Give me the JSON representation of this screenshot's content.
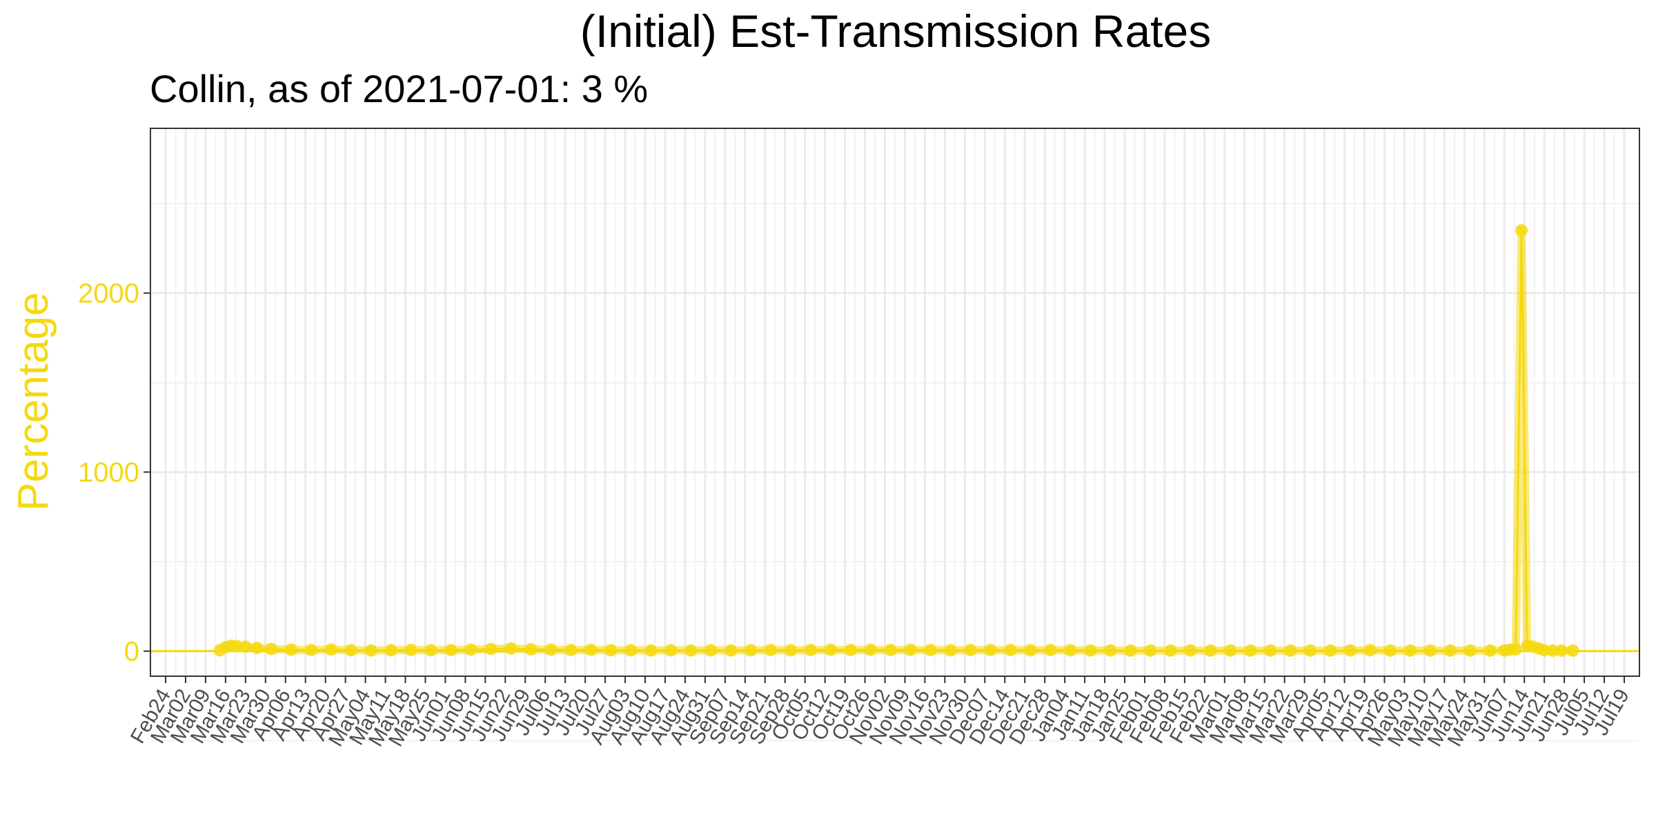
{
  "chart_data": {
    "type": "line",
    "title": "(Initial) Est-Transmission Rates",
    "subtitle": "Collin, as of 2021-07-01:  3 %",
    "xlabel": "",
    "ylabel": "Percentage",
    "ylim": [
      -140,
      2920
    ],
    "y_ticks": [
      0,
      1000,
      2000
    ],
    "y_tick_labels": [
      "0",
      "1000",
      "2000"
    ],
    "x_tick_labels": [
      "Feb24",
      "Mar02",
      "Mar09",
      "Mar16",
      "Mar23",
      "Mar30",
      "Apr06",
      "Apr13",
      "Apr20",
      "Apr27",
      "May04",
      "May11",
      "May18",
      "May25",
      "Jun01",
      "Jun08",
      "Jun15",
      "Jun22",
      "Jun29",
      "Jul06",
      "Jul13",
      "Jul20",
      "Jul27",
      "Aug03",
      "Aug10",
      "Aug17",
      "Aug24",
      "Aug31",
      "Sep07",
      "Sep14",
      "Sep21",
      "Sep28",
      "Oct05",
      "Oct12",
      "Oct19",
      "Oct26",
      "Nov02",
      "Nov09",
      "Nov16",
      "Nov23",
      "Nov30",
      "Dec07",
      "Dec14",
      "Dec21",
      "Dec28",
      "Jan04",
      "Jan11",
      "Jan18",
      "Jan25",
      "Feb01",
      "Feb08",
      "Feb15",
      "Feb22",
      "Mar01",
      "Mar08",
      "Mar15",
      "Mar22",
      "Mar29",
      "Apr05",
      "Apr12",
      "Apr19",
      "Apr26",
      "May03",
      "May10",
      "May17",
      "May24",
      "May31",
      "Jun07",
      "Jun14",
      "Jun21",
      "Jun28",
      "Jul05",
      "Jul12",
      "Jul19"
    ],
    "x_start": "2020-02-24",
    "x_end": "2021-07-19",
    "reference_line": 0,
    "grid": true,
    "series": [
      {
        "color": "#f5d90f",
        "points": [
          [
            "2020-03-14",
            5
          ],
          [
            "2020-03-16",
            22
          ],
          [
            "2020-03-18",
            30
          ],
          [
            "2020-03-20",
            28
          ],
          [
            "2020-03-23",
            25
          ],
          [
            "2020-03-27",
            18
          ],
          [
            "2020-04-01",
            12
          ],
          [
            "2020-04-08",
            8
          ],
          [
            "2020-04-15",
            6
          ],
          [
            "2020-04-22",
            9
          ],
          [
            "2020-04-29",
            5
          ],
          [
            "2020-05-06",
            4
          ],
          [
            "2020-05-13",
            5
          ],
          [
            "2020-05-20",
            7
          ],
          [
            "2020-05-27",
            5
          ],
          [
            "2020-06-03",
            6
          ],
          [
            "2020-06-10",
            8
          ],
          [
            "2020-06-17",
            12
          ],
          [
            "2020-06-24",
            15
          ],
          [
            "2020-07-01",
            10
          ],
          [
            "2020-07-08",
            8
          ],
          [
            "2020-07-15",
            6
          ],
          [
            "2020-07-22",
            7
          ],
          [
            "2020-07-29",
            5
          ],
          [
            "2020-08-05",
            5
          ],
          [
            "2020-08-12",
            4
          ],
          [
            "2020-08-19",
            5
          ],
          [
            "2020-08-26",
            4
          ],
          [
            "2020-09-02",
            5
          ],
          [
            "2020-09-09",
            4
          ],
          [
            "2020-09-16",
            5
          ],
          [
            "2020-09-23",
            6
          ],
          [
            "2020-09-30",
            5
          ],
          [
            "2020-10-07",
            6
          ],
          [
            "2020-10-14",
            7
          ],
          [
            "2020-10-21",
            6
          ],
          [
            "2020-10-28",
            7
          ],
          [
            "2020-11-04",
            6
          ],
          [
            "2020-11-11",
            7
          ],
          [
            "2020-11-18",
            6
          ],
          [
            "2020-11-25",
            5
          ],
          [
            "2020-12-02",
            6
          ],
          [
            "2020-12-09",
            6
          ],
          [
            "2020-12-16",
            6
          ],
          [
            "2020-12-23",
            5
          ],
          [
            "2020-12-30",
            6
          ],
          [
            "2021-01-06",
            5
          ],
          [
            "2021-01-13",
            4
          ],
          [
            "2021-01-20",
            4
          ],
          [
            "2021-01-27",
            3
          ],
          [
            "2021-02-03",
            3
          ],
          [
            "2021-02-10",
            3
          ],
          [
            "2021-02-17",
            4
          ],
          [
            "2021-02-24",
            3
          ],
          [
            "2021-03-03",
            3
          ],
          [
            "2021-03-10",
            3
          ],
          [
            "2021-03-17",
            3
          ],
          [
            "2021-03-24",
            3
          ],
          [
            "2021-03-31",
            3
          ],
          [
            "2021-04-07",
            3
          ],
          [
            "2021-04-14",
            4
          ],
          [
            "2021-04-21",
            5
          ],
          [
            "2021-04-28",
            3
          ],
          [
            "2021-05-05",
            3
          ],
          [
            "2021-05-12",
            3
          ],
          [
            "2021-05-19",
            3
          ],
          [
            "2021-05-26",
            3
          ],
          [
            "2021-06-02",
            3
          ],
          [
            "2021-06-07",
            4
          ],
          [
            "2021-06-09",
            8
          ],
          [
            "2021-06-11",
            10
          ],
          [
            "2021-06-13",
            2350
          ],
          [
            "2021-06-15",
            30
          ],
          [
            "2021-06-17",
            25
          ],
          [
            "2021-06-19",
            15
          ],
          [
            "2021-06-21",
            5
          ],
          [
            "2021-06-24",
            3
          ],
          [
            "2021-06-27",
            3
          ],
          [
            "2021-07-01",
            3
          ]
        ]
      }
    ]
  }
}
